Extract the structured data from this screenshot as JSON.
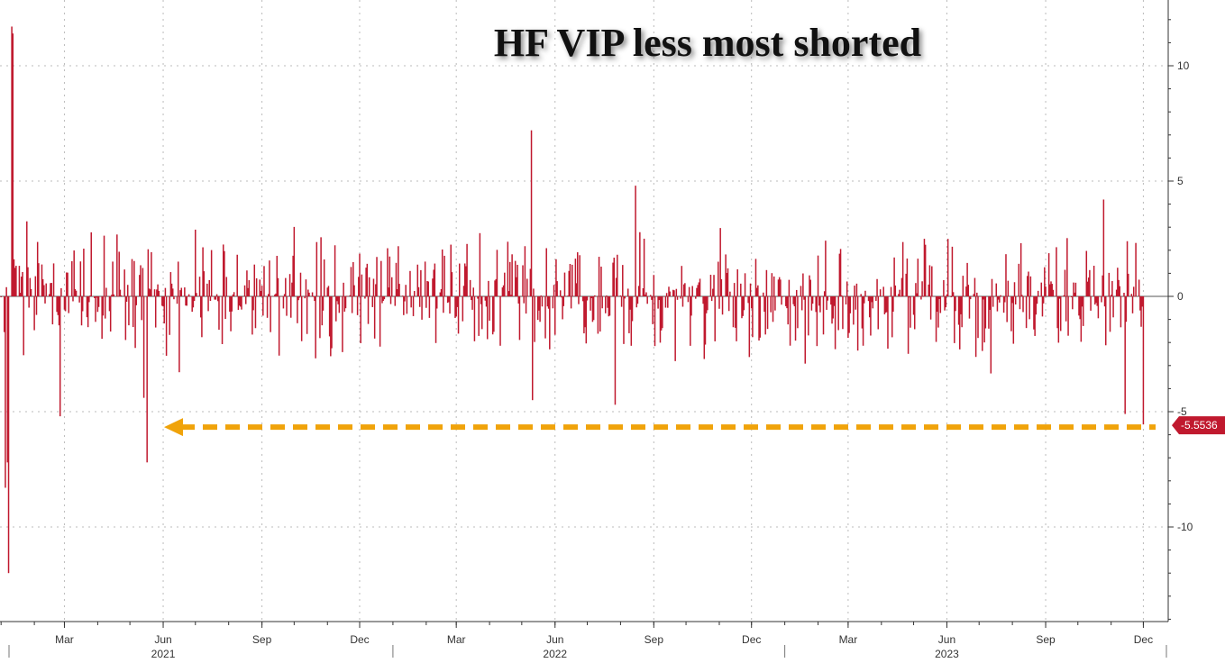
{
  "chart_data": {
    "type": "bar",
    "title": "HF VIP less most shorted",
    "ylim": [
      -14.5,
      13
    ],
    "y_ticks": [
      -10,
      -5,
      0,
      5,
      10
    ],
    "grid": true,
    "x_month_labels": [
      "Mar",
      "Jun",
      "Sep",
      "Dec",
      "Mar",
      "Jun",
      "Sep",
      "Dec",
      "Mar",
      "Jun",
      "Sep",
      "Dec"
    ],
    "x_year_labels": [
      "2021",
      "2022",
      "2023"
    ],
    "last_value_label": "-5.5536",
    "reference_line_value": -5.5536,
    "series": [
      {
        "name": "",
        "color": "#c0192e",
        "notable_points": [
          {
            "date": "2021-01-11",
            "value": 11.7
          },
          {
            "date": "2021-01-12",
            "value": 11.4
          },
          {
            "date": "2021-01-08",
            "value": -12.0
          },
          {
            "date": "2021-01-07",
            "value": -7.2
          },
          {
            "date": "2021-01-05",
            "value": -8.3
          },
          {
            "date": "2021-02-25",
            "value": -5.2
          },
          {
            "date": "2021-05-17",
            "value": -7.2
          },
          {
            "date": "2021-05-14",
            "value": -4.4
          },
          {
            "date": "2022-05-10",
            "value": 7.2
          },
          {
            "date": "2022-05-11",
            "value": -4.5
          },
          {
            "date": "2022-08-15",
            "value": 4.8
          },
          {
            "date": "2022-07-27",
            "value": -4.7
          },
          {
            "date": "2023-10-25",
            "value": 4.2
          },
          {
            "date": "2023-11-14",
            "value": -5.1
          },
          {
            "date": "2023-12-01",
            "value": -5.5536
          }
        ]
      }
    ]
  },
  "colors": {
    "bar": "#c0192e",
    "arrow": "#f0a30a",
    "grid": "#bbbbbb",
    "label_bg": "#c0192e"
  }
}
